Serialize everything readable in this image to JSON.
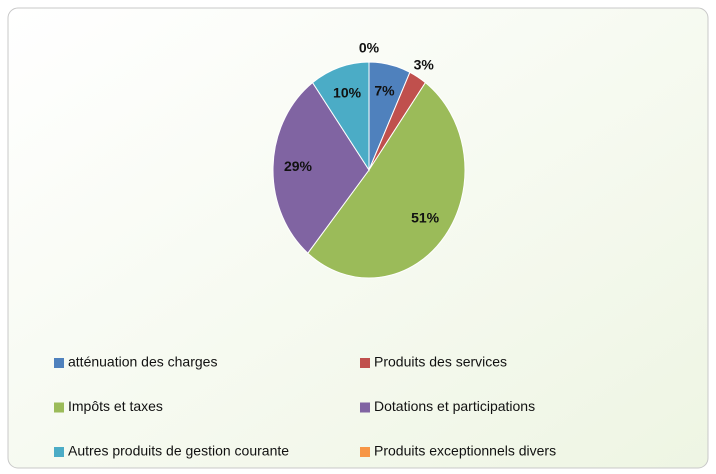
{
  "chart_data": {
    "type": "pie",
    "categories": [
      "atténuation des charges",
      "Produits des services",
      "Impôts et taxes",
      "Dotations et participations",
      "Autres produits de gestion courante",
      "Produits exceptionnels divers"
    ],
    "values": [
      7,
      3,
      51,
      29,
      10,
      0
    ],
    "value_labels": [
      "7%",
      "3%",
      "51%",
      "29%",
      "10%",
      "0%"
    ],
    "colors": [
      "#4f81bd",
      "#c0504d",
      "#9bbb59",
      "#8064a2",
      "#4bacc6",
      "#f79646"
    ],
    "legend": "bottom"
  }
}
